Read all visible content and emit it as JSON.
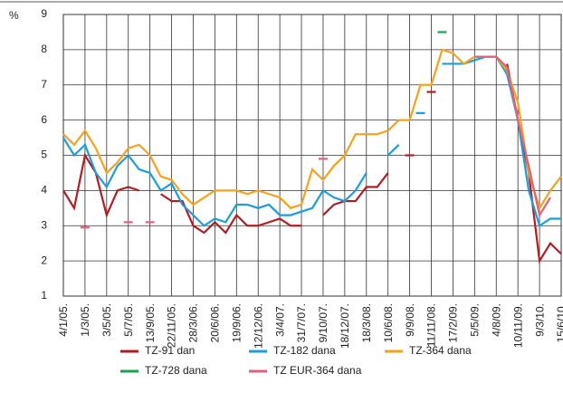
{
  "chart_data": {
    "type": "line",
    "y_unit": "%",
    "categories": [
      "4/1/05.",
      null,
      "1/3/05.",
      null,
      "3/5/05.",
      null,
      "5/7/05.",
      null,
      "13/9/05.",
      null,
      "22/11/05.",
      null,
      "28/3/06.",
      null,
      "20/6/06.",
      null,
      "19/9/06.",
      null,
      "12/12/06.",
      null,
      "3/4/07.",
      null,
      "31/7/07.",
      null,
      "9/10/07.",
      null,
      "18/12/07.",
      null,
      "18/3/08.",
      null,
      "10/6/08.",
      null,
      "9/9/08.",
      null,
      "11/11/08.",
      null,
      "17/2/09.",
      null,
      "5/5/09.",
      null,
      "4/8/09.",
      null,
      "10/11/09.",
      null,
      "9/3/10.",
      null,
      "15/6/10."
    ],
    "series": [
      {
        "name": "TZ-91 dan",
        "color": "#b01e23",
        "values": [
          4.0,
          3.5,
          5.0,
          4.5,
          3.3,
          4.0,
          4.1,
          4.0,
          null,
          3.9,
          3.7,
          3.7,
          3.0,
          2.8,
          3.1,
          2.8,
          3.3,
          3.0,
          3.0,
          3.1,
          3.2,
          3.0,
          3.0,
          null,
          3.3,
          3.6,
          3.7,
          3.7,
          4.1,
          4.1,
          4.5,
          null,
          5.0,
          null,
          6.8,
          null,
          null,
          null,
          null,
          null,
          null,
          7.6,
          6.0,
          4.5,
          2.0,
          2.5,
          2.2
        ]
      },
      {
        "name": "TZ-182 dana",
        "color": "#1a9fd8",
        "values": [
          5.5,
          5.0,
          5.3,
          4.5,
          4.1,
          4.7,
          5.0,
          4.6,
          4.5,
          4.0,
          4.2,
          3.6,
          3.3,
          3.0,
          3.2,
          3.1,
          3.6,
          3.6,
          3.5,
          3.6,
          3.3,
          3.3,
          3.4,
          3.5,
          4.0,
          3.8,
          3.7,
          4.0,
          4.5,
          null,
          5.0,
          5.3,
          null,
          6.2,
          null,
          7.6,
          7.6,
          7.6,
          7.7,
          7.8,
          7.8,
          7.3,
          6.0,
          4.0,
          3.0,
          3.2,
          3.2
        ]
      },
      {
        "name": "TZ-364 dana",
        "color": "#f7a21b",
        "values": [
          5.6,
          5.3,
          5.7,
          5.2,
          4.5,
          4.8,
          5.2,
          5.3,
          5.0,
          4.4,
          4.3,
          3.9,
          3.6,
          3.8,
          4.0,
          4.0,
          4.0,
          3.9,
          4.0,
          3.9,
          3.8,
          3.5,
          3.6,
          4.6,
          4.3,
          4.7,
          5.0,
          5.6,
          5.6,
          5.6,
          5.7,
          6.0,
          6.0,
          7.0,
          7.0,
          8.0,
          7.9,
          7.6,
          7.8,
          7.8,
          7.8,
          7.4,
          6.5,
          4.5,
          3.5,
          4.0,
          4.4
        ]
      },
      {
        "name": "TZ-728 dana",
        "color": "#1aa34a",
        "values": [
          null,
          null,
          null,
          null,
          null,
          null,
          null,
          null,
          null,
          null,
          null,
          null,
          null,
          null,
          null,
          null,
          null,
          null,
          null,
          null,
          null,
          null,
          null,
          null,
          null,
          null,
          null,
          null,
          null,
          null,
          null,
          null,
          null,
          null,
          null,
          8.5,
          null,
          null,
          null,
          null,
          null,
          null,
          null,
          null,
          null,
          null,
          null
        ]
      },
      {
        "name": "TZ EUR-364 dana",
        "color": "#e0607e",
        "values": [
          null,
          null,
          2.95,
          null,
          null,
          null,
          3.1,
          null,
          3.1,
          null,
          null,
          null,
          null,
          null,
          null,
          null,
          null,
          null,
          null,
          null,
          null,
          null,
          null,
          null,
          4.9,
          null,
          null,
          null,
          null,
          null,
          null,
          null,
          null,
          null,
          null,
          null,
          null,
          null,
          7.8,
          7.8,
          7.8,
          7.5,
          6.0,
          4.7,
          3.3,
          3.8,
          null
        ]
      }
    ],
    "ylim": [
      1,
      9
    ],
    "yticks": [
      1,
      2,
      3,
      4,
      5,
      6,
      7,
      8,
      9
    ],
    "grid": true
  }
}
